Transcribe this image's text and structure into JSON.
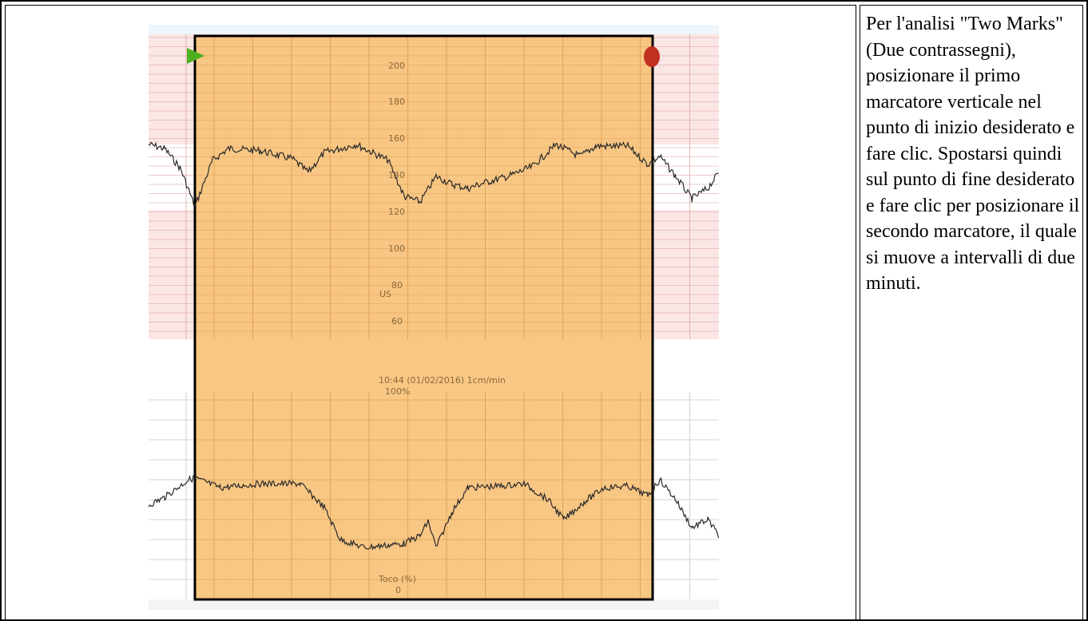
{
  "instruction_text": "Per l'analisi \"Two Marks\" (Due contrassegni), posizionare il primo marcatore verticale nel punto di inizio desiderato e fare clic. Spostarsi quindi sul punto di fine desiderato e fare clic per posizionare il secondo marcatore, il quale si muove a intervalli di due minuti.",
  "figure": {
    "fhr_axis_ticks": [
      "200",
      "180",
      "160",
      "140",
      "120",
      "100",
      "80",
      "60"
    ],
    "fhr_label": "US",
    "timestamp": "10:44 (01/02/2016) 1cm/min",
    "toco_top_tick": "100%",
    "toco_label": "Toco (%)",
    "toco_bottom_tick": "0",
    "colors": {
      "selection": "#f7c27a",
      "grid_pink": "#f9e1e1",
      "start_marker": "#4caf1f",
      "end_marker": "#c0301e",
      "trace": "#2a2a2a"
    },
    "icons": {
      "start_marker": "green-triangle",
      "end_marker": "red-circle"
    }
  }
}
